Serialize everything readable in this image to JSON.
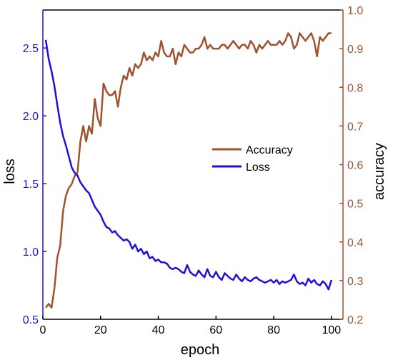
{
  "chart_data": {
    "type": "line",
    "xlabel": "epoch",
    "ylabel_left": "loss",
    "ylabel_right": "accuracy",
    "x_ticks": [
      0,
      20,
      40,
      60,
      80,
      100
    ],
    "y_left_ticks": [
      "0.5",
      "1.0",
      "1.5",
      "2.0",
      "2.5"
    ],
    "y_right_ticks": [
      "0.2",
      "0.3",
      "0.4",
      "0.5",
      "0.6",
      "0.7",
      "0.8",
      "0.9",
      "1.0"
    ],
    "xlim": [
      0,
      104
    ],
    "ylim_left": [
      0.5,
      2.78
    ],
    "ylim_right": [
      0.2,
      1.0
    ],
    "legend_position": "center-right",
    "colors": {
      "accuracy": "#a0522d",
      "loss": "#1f12d6",
      "left_axis": "#1f12d6",
      "right_axis": "#a0522d"
    },
    "series": [
      {
        "name": "Accuracy",
        "axis": "right",
        "x": [
          1,
          2,
          3,
          4,
          5,
          6,
          7,
          8,
          9,
          10,
          11,
          12,
          13,
          14,
          15,
          16,
          17,
          18,
          19,
          20,
          21,
          22,
          23,
          24,
          25,
          26,
          27,
          28,
          29,
          30,
          31,
          32,
          33,
          34,
          35,
          36,
          37,
          38,
          39,
          40,
          41,
          42,
          43,
          44,
          45,
          46,
          47,
          48,
          49,
          50,
          51,
          52,
          53,
          54,
          55,
          56,
          57,
          58,
          59,
          60,
          61,
          62,
          63,
          64,
          65,
          66,
          67,
          68,
          69,
          70,
          71,
          72,
          73,
          74,
          75,
          76,
          77,
          78,
          79,
          80,
          81,
          82,
          83,
          84,
          85,
          86,
          87,
          88,
          89,
          90,
          91,
          92,
          93,
          94,
          95,
          96,
          97,
          98,
          99,
          100
        ],
        "values": [
          0.23,
          0.24,
          0.23,
          0.28,
          0.36,
          0.39,
          0.48,
          0.52,
          0.54,
          0.55,
          0.57,
          0.58,
          0.66,
          0.7,
          0.66,
          0.7,
          0.68,
          0.77,
          0.72,
          0.7,
          0.81,
          0.79,
          0.78,
          0.78,
          0.79,
          0.75,
          0.8,
          0.83,
          0.82,
          0.85,
          0.83,
          0.86,
          0.85,
          0.86,
          0.89,
          0.87,
          0.88,
          0.87,
          0.89,
          0.88,
          0.92,
          0.89,
          0.88,
          0.88,
          0.9,
          0.86,
          0.89,
          0.88,
          0.91,
          0.9,
          0.89,
          0.89,
          0.9,
          0.9,
          0.91,
          0.93,
          0.9,
          0.91,
          0.9,
          0.9,
          0.9,
          0.91,
          0.91,
          0.9,
          0.91,
          0.92,
          0.91,
          0.9,
          0.91,
          0.91,
          0.9,
          0.92,
          0.91,
          0.89,
          0.91,
          0.9,
          0.91,
          0.92,
          0.91,
          0.91,
          0.91,
          0.92,
          0.91,
          0.92,
          0.94,
          0.93,
          0.9,
          0.91,
          0.94,
          0.93,
          0.92,
          0.93,
          0.94,
          0.92,
          0.88,
          0.93,
          0.92,
          0.93,
          0.94,
          0.94
        ]
      },
      {
        "name": "Loss",
        "axis": "left",
        "x": [
          1,
          2,
          3,
          4,
          5,
          6,
          7,
          8,
          9,
          10,
          11,
          12,
          13,
          14,
          15,
          16,
          17,
          18,
          19,
          20,
          21,
          22,
          23,
          24,
          25,
          26,
          27,
          28,
          29,
          30,
          31,
          32,
          33,
          34,
          35,
          36,
          37,
          38,
          39,
          40,
          41,
          42,
          43,
          44,
          45,
          46,
          47,
          48,
          49,
          50,
          51,
          52,
          53,
          54,
          55,
          56,
          57,
          58,
          59,
          60,
          61,
          62,
          63,
          64,
          65,
          66,
          67,
          68,
          69,
          70,
          71,
          72,
          73,
          74,
          75,
          76,
          77,
          78,
          79,
          80,
          81,
          82,
          83,
          84,
          85,
          86,
          87,
          88,
          89,
          90,
          91,
          92,
          93,
          94,
          95,
          96,
          97,
          98,
          99,
          100
        ],
        "values": [
          2.56,
          2.42,
          2.33,
          2.22,
          2.08,
          1.95,
          1.85,
          1.78,
          1.7,
          1.62,
          1.58,
          1.56,
          1.51,
          1.48,
          1.45,
          1.43,
          1.38,
          1.33,
          1.3,
          1.27,
          1.22,
          1.18,
          1.17,
          1.14,
          1.15,
          1.12,
          1.1,
          1.08,
          1.09,
          1.07,
          1.02,
          1.05,
          1.0,
          1.02,
          0.98,
          1.0,
          0.95,
          0.96,
          0.93,
          0.94,
          0.92,
          0.92,
          0.91,
          0.88,
          0.87,
          0.88,
          0.87,
          0.85,
          0.84,
          0.9,
          0.85,
          0.83,
          0.82,
          0.86,
          0.83,
          0.81,
          0.87,
          0.82,
          0.81,
          0.85,
          0.81,
          0.79,
          0.84,
          0.82,
          0.8,
          0.79,
          0.83,
          0.8,
          0.78,
          0.81,
          0.79,
          0.78,
          0.8,
          0.81,
          0.79,
          0.78,
          0.77,
          0.78,
          0.79,
          0.77,
          0.79,
          0.76,
          0.78,
          0.77,
          0.78,
          0.79,
          0.83,
          0.78,
          0.76,
          0.77,
          0.75,
          0.8,
          0.77,
          0.79,
          0.76,
          0.75,
          0.78,
          0.76,
          0.72,
          0.79
        ]
      }
    ]
  }
}
